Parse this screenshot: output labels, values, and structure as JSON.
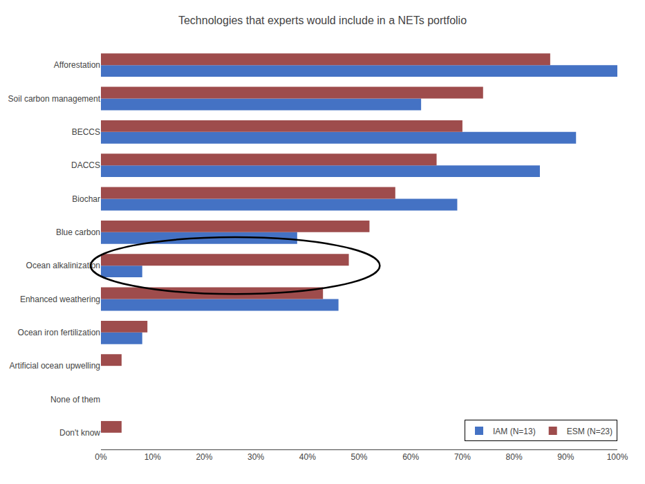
{
  "chart_data": {
    "type": "bar",
    "orientation": "horizontal",
    "title": "Technologies that experts would include in a NETs portfolio",
    "categories": [
      "Afforestation",
      "Soil carbon management",
      "BECCS",
      "DACCS",
      "Biochar",
      "Blue carbon",
      "Ocean alkalinization",
      "Enhanced weathering",
      "Ocean iron fertilization",
      "Artificial ocean upwelling",
      "None of them",
      "Don't know"
    ],
    "series": [
      {
        "name": "IAM (N=13)",
        "color": "#4472C4",
        "values": [
          100,
          62,
          92,
          85,
          69,
          38,
          8,
          46,
          8,
          0,
          0,
          0
        ]
      },
      {
        "name": "ESM (N=23)",
        "color": "#9E4C4C",
        "values": [
          87,
          74,
          70,
          65,
          57,
          52,
          48,
          43,
          9,
          4,
          0,
          4
        ]
      }
    ],
    "xlim": [
      0,
      100
    ],
    "xticks": [
      {
        "value": 0,
        "label": "0%"
      },
      {
        "value": 10,
        "label": "10%"
      },
      {
        "value": 20,
        "label": "20%"
      },
      {
        "value": 30,
        "label": "30%"
      },
      {
        "value": 40,
        "label": "40%"
      },
      {
        "value": 50,
        "label": "50%"
      },
      {
        "value": 60,
        "label": "60%"
      },
      {
        "value": 70,
        "label": "70%"
      },
      {
        "value": 80,
        "label": "80%"
      },
      {
        "value": 90,
        "label": "90%"
      },
      {
        "value": 100,
        "label": "100%"
      }
    ],
    "grid": false,
    "legend": "lower right"
  }
}
